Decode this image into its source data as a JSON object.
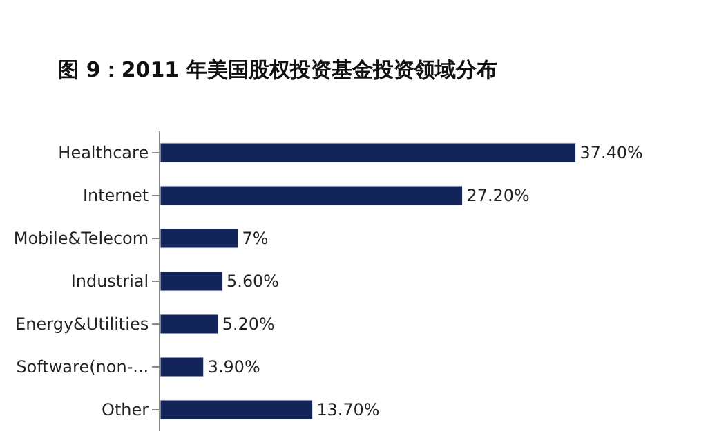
{
  "chart_data": {
    "type": "bar",
    "orientation": "horizontal",
    "title": "图 9：2011 年美国股权投资基金投资领域分布",
    "categories": [
      "Healthcare",
      "Internet",
      "Mobile&Telecom",
      "Industrial",
      "Energy&Utilities",
      "Software(non-...",
      "Other"
    ],
    "values": [
      37.4,
      27.2,
      7,
      5.6,
      5.2,
      3.9,
      13.7
    ],
    "value_labels": [
      "37.40%",
      "27.20%",
      "7%",
      "5.60%",
      "5.20%",
      "3.90%",
      "13.70%"
    ],
    "color": "#12245a"
  }
}
